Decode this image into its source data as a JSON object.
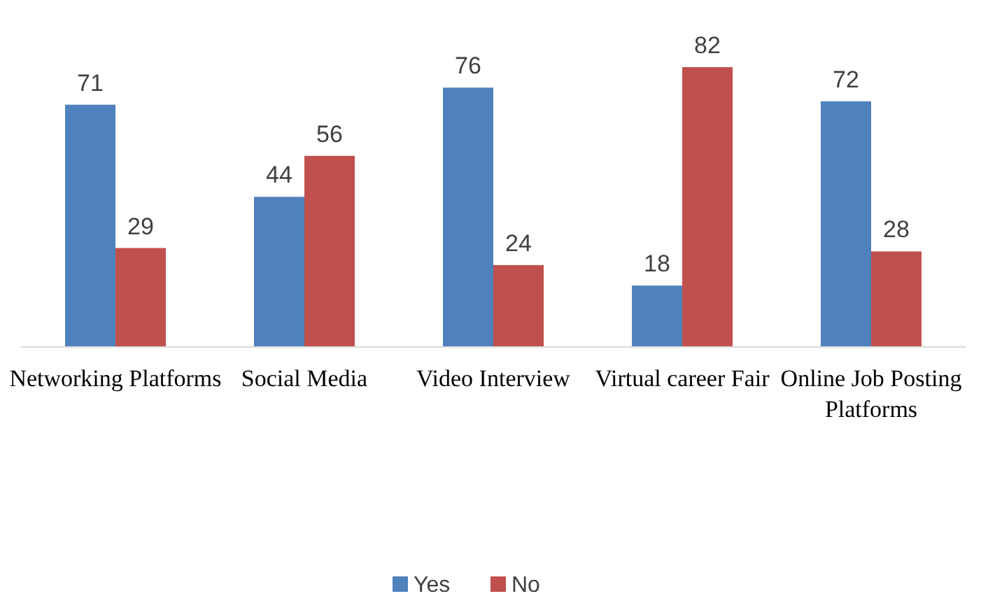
{
  "chart_data": {
    "type": "bar",
    "categories": [
      "Networking Platforms",
      "Social Media",
      "Video Interview",
      "Virtual career Fair",
      "Online Job Posting Platforms"
    ],
    "series": [
      {
        "name": "Yes",
        "color": "#4f81bd",
        "values": [
          71,
          44,
          76,
          18,
          72
        ]
      },
      {
        "name": "No",
        "color": "#c0504d",
        "values": [
          29,
          56,
          24,
          82,
          28
        ]
      }
    ],
    "data_labels": true,
    "legend": "bottom",
    "grid": false
  }
}
